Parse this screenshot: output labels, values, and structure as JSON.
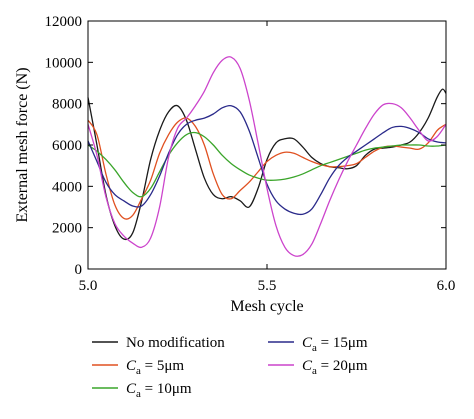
{
  "chart_data": {
    "type": "line",
    "xlabel": "Mesh cycle",
    "ylabel": "External mesh force (N)",
    "xlim": [
      5.0,
      6.0
    ],
    "ylim": [
      0,
      12000
    ],
    "xticks": [
      5.0,
      5.5,
      6.0
    ],
    "xtick_labels": [
      "5.0",
      "5.5",
      "6.0"
    ],
    "yticks": [
      0,
      2000,
      4000,
      6000,
      8000,
      10000,
      12000
    ],
    "ytick_labels": [
      "0",
      "2000",
      "4000",
      "6000",
      "8000",
      "10000",
      "12000"
    ],
    "grid": false,
    "legend_position": "bottom",
    "series": [
      {
        "name": "No modification",
        "legend": {
          "main": "No modification",
          "sub": "",
          "tail": ""
        },
        "color": "#1a1a1a",
        "points": [
          [
            5.0,
            8300
          ],
          [
            5.025,
            6000
          ],
          [
            5.05,
            3600
          ],
          [
            5.075,
            2100
          ],
          [
            5.1,
            1450
          ],
          [
            5.125,
            1750
          ],
          [
            5.15,
            3300
          ],
          [
            5.175,
            5300
          ],
          [
            5.2,
            6700
          ],
          [
            5.225,
            7600
          ],
          [
            5.25,
            7900
          ],
          [
            5.275,
            7200
          ],
          [
            5.3,
            5800
          ],
          [
            5.325,
            4400
          ],
          [
            5.35,
            3600
          ],
          [
            5.375,
            3400
          ],
          [
            5.4,
            3500
          ],
          [
            5.425,
            3300
          ],
          [
            5.45,
            3000
          ],
          [
            5.475,
            3900
          ],
          [
            5.5,
            5300
          ],
          [
            5.525,
            6100
          ],
          [
            5.55,
            6300
          ],
          [
            5.575,
            6300
          ],
          [
            5.6,
            5900
          ],
          [
            5.625,
            5400
          ],
          [
            5.65,
            5100
          ],
          [
            5.675,
            4950
          ],
          [
            5.7,
            4900
          ],
          [
            5.725,
            4850
          ],
          [
            5.75,
            5000
          ],
          [
            5.775,
            5500
          ],
          [
            5.8,
            5800
          ],
          [
            5.825,
            5850
          ],
          [
            5.85,
            5900
          ],
          [
            5.875,
            6000
          ],
          [
            5.9,
            6150
          ],
          [
            5.925,
            6600
          ],
          [
            5.95,
            7300
          ],
          [
            5.975,
            8300
          ],
          [
            5.99,
            8700
          ],
          [
            6.0,
            8500
          ]
        ]
      },
      {
        "name": "Ca = 5μm",
        "legend": {
          "main": "C",
          "sub": "a",
          "tail": " = 5μm"
        },
        "color": "#e05020",
        "points": [
          [
            5.0,
            7200
          ],
          [
            5.025,
            6500
          ],
          [
            5.05,
            4600
          ],
          [
            5.075,
            3100
          ],
          [
            5.1,
            2450
          ],
          [
            5.125,
            2600
          ],
          [
            5.15,
            3400
          ],
          [
            5.175,
            4300
          ],
          [
            5.2,
            5600
          ],
          [
            5.225,
            6500
          ],
          [
            5.25,
            7100
          ],
          [
            5.275,
            7300
          ],
          [
            5.3,
            6900
          ],
          [
            5.325,
            6000
          ],
          [
            5.35,
            4600
          ],
          [
            5.375,
            3600
          ],
          [
            5.4,
            3400
          ],
          [
            5.425,
            3800
          ],
          [
            5.45,
            4200
          ],
          [
            5.475,
            4700
          ],
          [
            5.5,
            5200
          ],
          [
            5.525,
            5500
          ],
          [
            5.55,
            5650
          ],
          [
            5.575,
            5600
          ],
          [
            5.6,
            5400
          ],
          [
            5.625,
            5200
          ],
          [
            5.65,
            5050
          ],
          [
            5.675,
            4950
          ],
          [
            5.7,
            4950
          ],
          [
            5.725,
            5000
          ],
          [
            5.75,
            5100
          ],
          [
            5.775,
            5400
          ],
          [
            5.8,
            5700
          ],
          [
            5.825,
            5900
          ],
          [
            5.85,
            5950
          ],
          [
            5.875,
            5900
          ],
          [
            5.9,
            5850
          ],
          [
            5.925,
            5800
          ],
          [
            5.95,
            6100
          ],
          [
            5.975,
            6700
          ],
          [
            5.99,
            6900
          ],
          [
            6.0,
            7000
          ]
        ]
      },
      {
        "name": "Ca = 10μm",
        "legend": {
          "main": "C",
          "sub": "a",
          "tail": " = 10μm"
        },
        "color": "#3aa52a",
        "points": [
          [
            5.0,
            6000
          ],
          [
            5.025,
            5700
          ],
          [
            5.05,
            5300
          ],
          [
            5.075,
            4800
          ],
          [
            5.1,
            4200
          ],
          [
            5.125,
            3700
          ],
          [
            5.15,
            3500
          ],
          [
            5.175,
            3900
          ],
          [
            5.2,
            4700
          ],
          [
            5.225,
            5500
          ],
          [
            5.25,
            6100
          ],
          [
            5.275,
            6500
          ],
          [
            5.3,
            6600
          ],
          [
            5.325,
            6400
          ],
          [
            5.35,
            6000
          ],
          [
            5.375,
            5500
          ],
          [
            5.4,
            5100
          ],
          [
            5.425,
            4800
          ],
          [
            5.45,
            4550
          ],
          [
            5.475,
            4400
          ],
          [
            5.5,
            4300
          ],
          [
            5.525,
            4300
          ],
          [
            5.55,
            4350
          ],
          [
            5.575,
            4450
          ],
          [
            5.6,
            4600
          ],
          [
            5.625,
            4800
          ],
          [
            5.65,
            5000
          ],
          [
            5.675,
            5150
          ],
          [
            5.7,
            5300
          ],
          [
            5.725,
            5450
          ],
          [
            5.75,
            5600
          ],
          [
            5.775,
            5750
          ],
          [
            5.8,
            5850
          ],
          [
            5.825,
            5900
          ],
          [
            5.85,
            5950
          ],
          [
            5.875,
            6000
          ],
          [
            5.9,
            6000
          ],
          [
            5.925,
            6000
          ],
          [
            5.95,
            5950
          ],
          [
            5.975,
            5950
          ],
          [
            6.0,
            6000
          ]
        ]
      },
      {
        "name": "Ca = 15μm",
        "legend": {
          "main": "C",
          "sub": "a",
          "tail": " = 15μm"
        },
        "color": "#2a2a8a",
        "points": [
          [
            5.0,
            6200
          ],
          [
            5.025,
            5200
          ],
          [
            5.05,
            4200
          ],
          [
            5.075,
            3600
          ],
          [
            5.1,
            3300
          ],
          [
            5.125,
            3050
          ],
          [
            5.15,
            3050
          ],
          [
            5.175,
            3600
          ],
          [
            5.2,
            4500
          ],
          [
            5.225,
            5600
          ],
          [
            5.25,
            6500
          ],
          [
            5.275,
            7000
          ],
          [
            5.3,
            7200
          ],
          [
            5.325,
            7300
          ],
          [
            5.35,
            7500
          ],
          [
            5.375,
            7800
          ],
          [
            5.4,
            7900
          ],
          [
            5.425,
            7600
          ],
          [
            5.45,
            6700
          ],
          [
            5.475,
            5400
          ],
          [
            5.5,
            4100
          ],
          [
            5.525,
            3300
          ],
          [
            5.55,
            2900
          ],
          [
            5.575,
            2700
          ],
          [
            5.6,
            2650
          ],
          [
            5.625,
            2900
          ],
          [
            5.65,
            3600
          ],
          [
            5.675,
            4400
          ],
          [
            5.7,
            5000
          ],
          [
            5.725,
            5400
          ],
          [
            5.75,
            5700
          ],
          [
            5.775,
            6000
          ],
          [
            5.8,
            6300
          ],
          [
            5.825,
            6600
          ],
          [
            5.85,
            6850
          ],
          [
            5.875,
            6900
          ],
          [
            5.9,
            6800
          ],
          [
            5.925,
            6600
          ],
          [
            5.95,
            6300
          ],
          [
            5.975,
            6150
          ],
          [
            6.0,
            6100
          ]
        ]
      },
      {
        "name": "Ca = 20μm",
        "legend": {
          "main": "C",
          "sub": "a",
          "tail": " = 20μm"
        },
        "color": "#cc44cc",
        "points": [
          [
            5.0,
            7000
          ],
          [
            5.025,
            5500
          ],
          [
            5.05,
            3500
          ],
          [
            5.075,
            2200
          ],
          [
            5.1,
            1600
          ],
          [
            5.125,
            1250
          ],
          [
            5.15,
            1050
          ],
          [
            5.175,
            1500
          ],
          [
            5.2,
            3000
          ],
          [
            5.225,
            5400
          ],
          [
            5.25,
            6800
          ],
          [
            5.275,
            7300
          ],
          [
            5.3,
            7900
          ],
          [
            5.325,
            8600
          ],
          [
            5.35,
            9500
          ],
          [
            5.375,
            10100
          ],
          [
            5.4,
            10250
          ],
          [
            5.425,
            9700
          ],
          [
            5.45,
            8200
          ],
          [
            5.475,
            6100
          ],
          [
            5.5,
            3900
          ],
          [
            5.525,
            2100
          ],
          [
            5.55,
            1050
          ],
          [
            5.575,
            650
          ],
          [
            5.6,
            700
          ],
          [
            5.625,
            1200
          ],
          [
            5.65,
            2200
          ],
          [
            5.675,
            3300
          ],
          [
            5.7,
            4300
          ],
          [
            5.725,
            5200
          ],
          [
            5.75,
            6000
          ],
          [
            5.775,
            6800
          ],
          [
            5.8,
            7500
          ],
          [
            5.825,
            7950
          ],
          [
            5.85,
            8000
          ],
          [
            5.875,
            7800
          ],
          [
            5.9,
            7300
          ],
          [
            5.925,
            6700
          ],
          [
            5.95,
            6200
          ],
          [
            5.975,
            6400
          ],
          [
            6.0,
            7000
          ]
        ]
      }
    ]
  }
}
